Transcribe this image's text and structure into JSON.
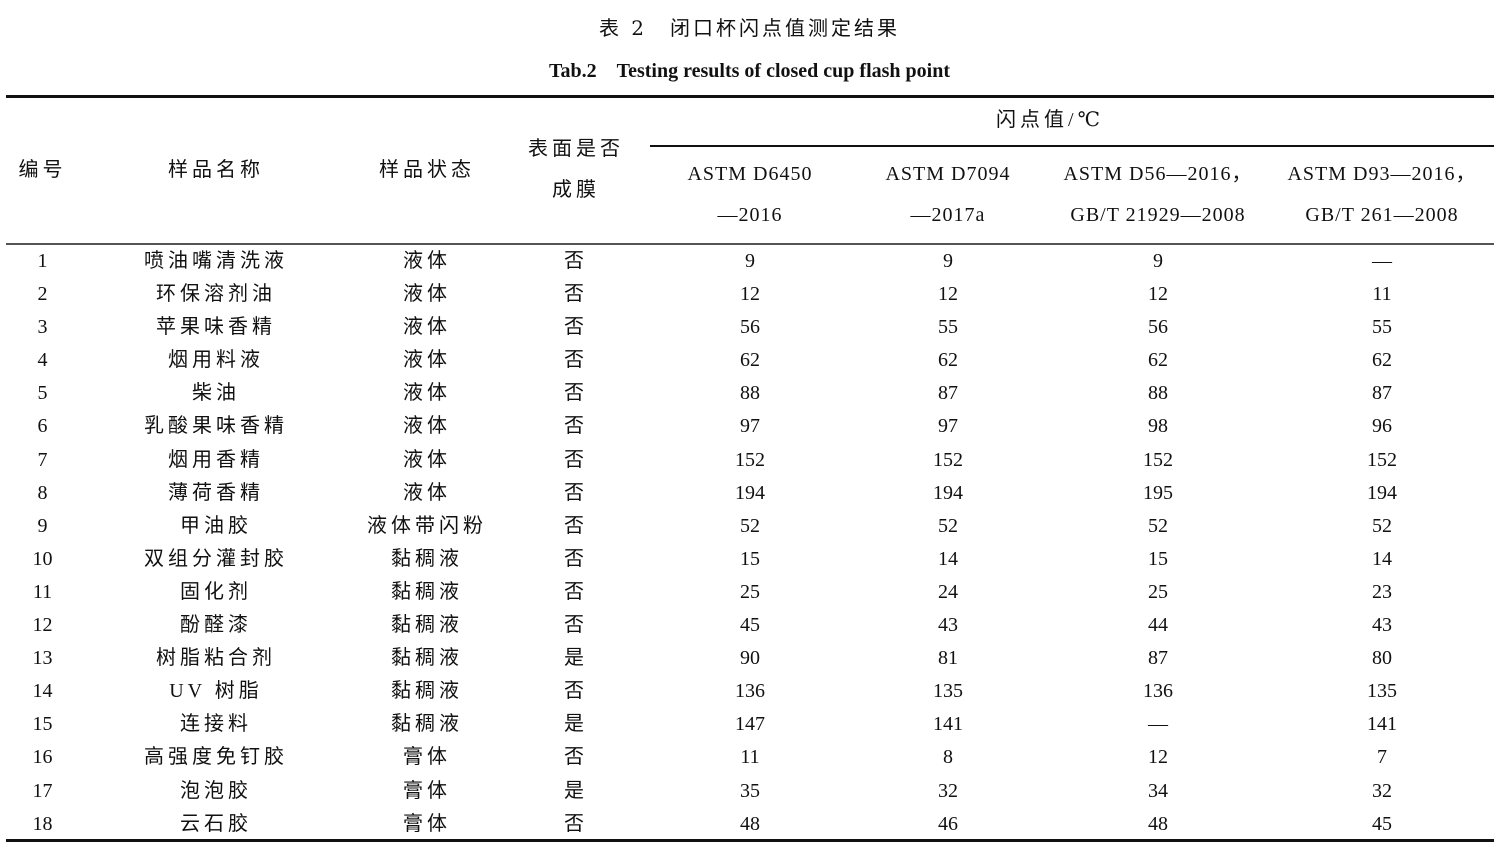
{
  "caption": {
    "cn": "表 2　闭口杯闪点值测定结果",
    "en": "Tab.2　Testing results of closed cup flash point"
  },
  "headers": {
    "id": "编号",
    "name": "样品名称",
    "state": "样品状态",
    "film_line1": "表面是否",
    "film_line2": "成膜",
    "flash_group": "闪点值/℃",
    "methods": [
      {
        "line1": "ASTM D6450",
        "line2": "—2016"
      },
      {
        "line1": "ASTM D7094",
        "line2": "—2017a"
      },
      {
        "line1": "ASTM D56—2016，",
        "line2": "GB/T 21929—2008"
      },
      {
        "line1": "ASTM D93—2016，",
        "line2": "GB/T 261—2008"
      }
    ]
  },
  "rows": [
    [
      "1",
      "喷油嘴清洗液",
      "液体",
      "否",
      "9",
      "9",
      "9",
      "—"
    ],
    [
      "2",
      "环保溶剂油",
      "液体",
      "否",
      "12",
      "12",
      "12",
      "11"
    ],
    [
      "3",
      "苹果味香精",
      "液体",
      "否",
      "56",
      "55",
      "56",
      "55"
    ],
    [
      "4",
      "烟用料液",
      "液体",
      "否",
      "62",
      "62",
      "62",
      "62"
    ],
    [
      "5",
      "柴油",
      "液体",
      "否",
      "88",
      "87",
      "88",
      "87"
    ],
    [
      "6",
      "乳酸果味香精",
      "液体",
      "否",
      "97",
      "97",
      "98",
      "96"
    ],
    [
      "7",
      "烟用香精",
      "液体",
      "否",
      "152",
      "152",
      "152",
      "152"
    ],
    [
      "8",
      "薄荷香精",
      "液体",
      "否",
      "194",
      "194",
      "195",
      "194"
    ],
    [
      "9",
      "甲油胶",
      "液体带闪粉",
      "否",
      "52",
      "52",
      "52",
      "52"
    ],
    [
      "10",
      "双组分灌封胶",
      "黏稠液",
      "否",
      "15",
      "14",
      "15",
      "14"
    ],
    [
      "11",
      "固化剂",
      "黏稠液",
      "否",
      "25",
      "24",
      "25",
      "23"
    ],
    [
      "12",
      "酚醛漆",
      "黏稠液",
      "否",
      "45",
      "43",
      "44",
      "43"
    ],
    [
      "13",
      "树脂粘合剂",
      "黏稠液",
      "是",
      "90",
      "81",
      "87",
      "80"
    ],
    [
      "14",
      "UV 树脂",
      "黏稠液",
      "否",
      "136",
      "135",
      "136",
      "135"
    ],
    [
      "15",
      "连接料",
      "黏稠液",
      "是",
      "147",
      "141",
      "—",
      "141"
    ],
    [
      "16",
      "高强度免钉胶",
      "膏体",
      "否",
      "11",
      "8",
      "12",
      "7"
    ],
    [
      "17",
      "泡泡胶",
      "膏体",
      "是",
      "35",
      "32",
      "34",
      "32"
    ],
    [
      "18",
      "云石胶",
      "膏体",
      "否",
      "48",
      "46",
      "48",
      "45"
    ]
  ]
}
